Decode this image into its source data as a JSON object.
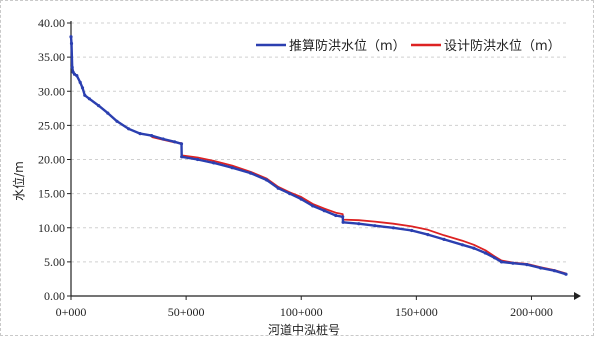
{
  "chart_data": {
    "type": "line",
    "xlabel": "河道中泓桩号",
    "ylabel": "水位/m",
    "ylim": [
      0,
      40
    ],
    "xlim": [
      0,
      215000
    ],
    "grid": "horizontal-dashed",
    "legend_position": "top-right",
    "x_ticks": [
      "0+000",
      "50+000",
      "100+000",
      "150+000",
      "200+000"
    ],
    "y_ticks": [
      "0.00",
      "5.00",
      "10.00",
      "15.00",
      "20.00",
      "25.00",
      "30.00",
      "35.00",
      "40.00"
    ],
    "series": [
      {
        "name": "推算防洪水位（m）",
        "color": "#2b3fb0",
        "x": [
          0,
          200,
          500,
          900,
          1500,
          2500,
          4000,
          5000,
          6000,
          8000,
          12000,
          16000,
          20000,
          25000,
          30000,
          35000,
          40000,
          45000,
          48000,
          48100,
          55000,
          62000,
          70000,
          78000,
          85000,
          90000,
          95000,
          100000,
          105000,
          110000,
          115000,
          118000,
          118200,
          125000,
          132000,
          140000,
          148000,
          155000,
          162000,
          170000,
          175000,
          180000,
          184000,
          187000,
          192000,
          198000,
          204000,
          210000,
          215000
        ],
        "values": [
          38.0,
          37.0,
          33.5,
          32.8,
          32.5,
          32.3,
          31.3,
          30.5,
          29.4,
          28.9,
          27.9,
          26.8,
          25.6,
          24.5,
          23.8,
          23.5,
          23.0,
          22.6,
          22.3,
          20.4,
          20.0,
          19.5,
          18.8,
          18.0,
          17.0,
          15.8,
          15.0,
          14.2,
          13.2,
          12.5,
          11.8,
          11.6,
          10.8,
          10.6,
          10.3,
          10.0,
          9.6,
          9.0,
          8.3,
          7.5,
          7.0,
          6.3,
          5.6,
          5.0,
          4.8,
          4.6,
          4.1,
          3.7,
          3.2
        ]
      },
      {
        "name": "设计防洪水位（m）",
        "color": "#dd2222",
        "x": [
          35000,
          40000,
          45000,
          48000,
          48100,
          55000,
          62000,
          70000,
          78000,
          85000,
          90000,
          95000,
          100000,
          105000,
          110000,
          115000,
          118000,
          118200,
          125000,
          132000,
          140000,
          148000,
          155000,
          162000,
          170000,
          175000,
          180000,
          184000,
          187000,
          192000,
          198000,
          204000,
          210000,
          215000
        ],
        "values": [
          23.3,
          22.9,
          22.5,
          22.4,
          20.6,
          20.3,
          19.8,
          19.1,
          18.2,
          17.2,
          16.0,
          15.2,
          14.5,
          13.5,
          12.8,
          12.2,
          12.0,
          11.2,
          11.1,
          10.9,
          10.6,
          10.2,
          9.7,
          8.9,
          8.1,
          7.5,
          6.7,
          5.8,
          5.2,
          4.9,
          4.7,
          4.2,
          3.8,
          3.3
        ]
      }
    ]
  }
}
